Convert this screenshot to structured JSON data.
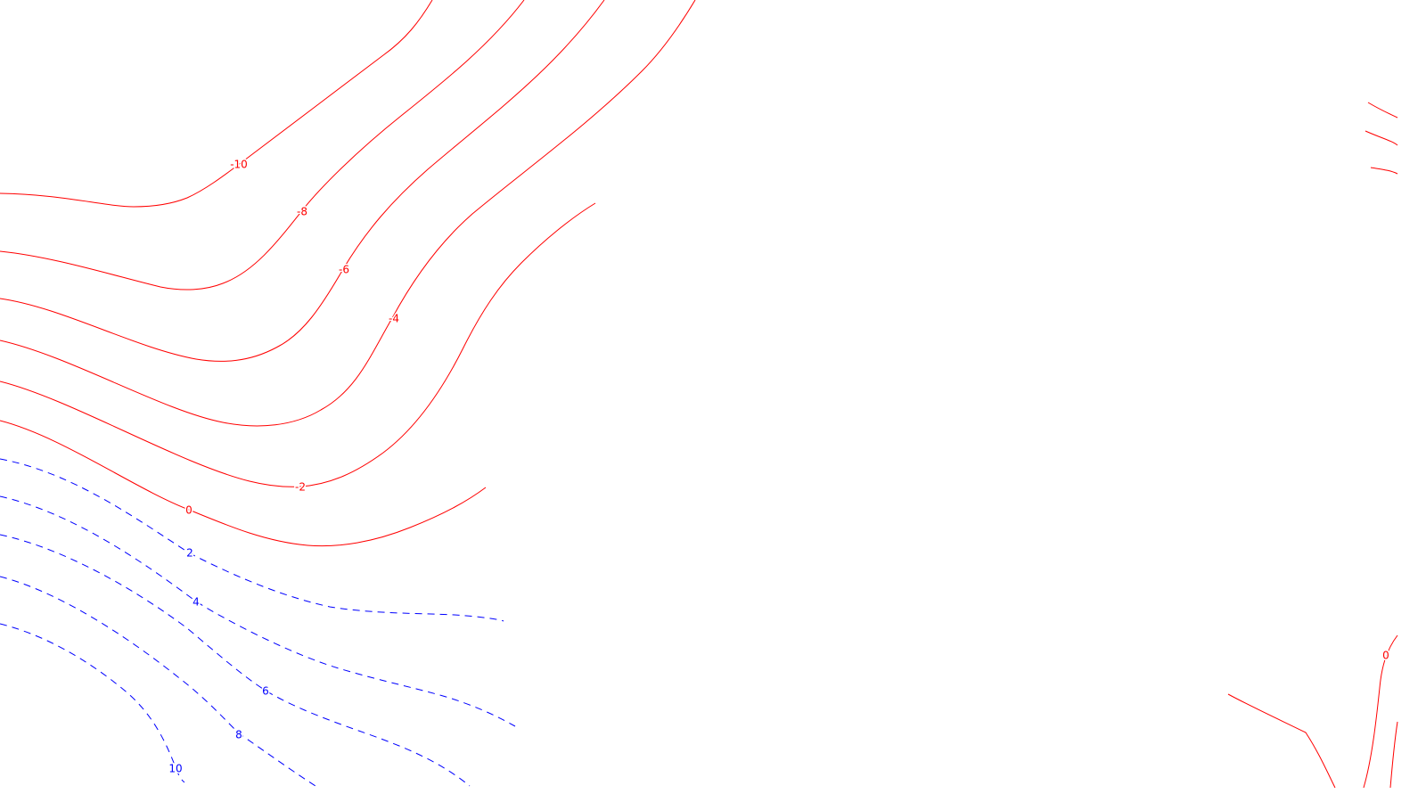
{
  "chart_data": {
    "type": "contour",
    "title": "",
    "xlabel": "",
    "ylabel": "",
    "grid": false,
    "legend": "none",
    "colors": {
      "negative": "#ff0000",
      "zero": "#ff0000",
      "positive": "#0000ff"
    },
    "line_styles": {
      "negative": "solid",
      "zero": "solid",
      "positive": "dashed"
    },
    "levels": [
      {
        "value": -10,
        "label": "-10"
      },
      {
        "value": -8,
        "label": "-8"
      },
      {
        "value": -6,
        "label": "-6"
      },
      {
        "value": -4,
        "label": "-4"
      },
      {
        "value": -2,
        "label": "-2"
      },
      {
        "value": 0,
        "label": "0"
      },
      {
        "value": 2,
        "label": "2"
      },
      {
        "value": 4,
        "label": "4"
      },
      {
        "value": 6,
        "label": "6"
      },
      {
        "value": 8,
        "label": "8"
      },
      {
        "value": 10,
        "label": "10"
      }
    ]
  }
}
